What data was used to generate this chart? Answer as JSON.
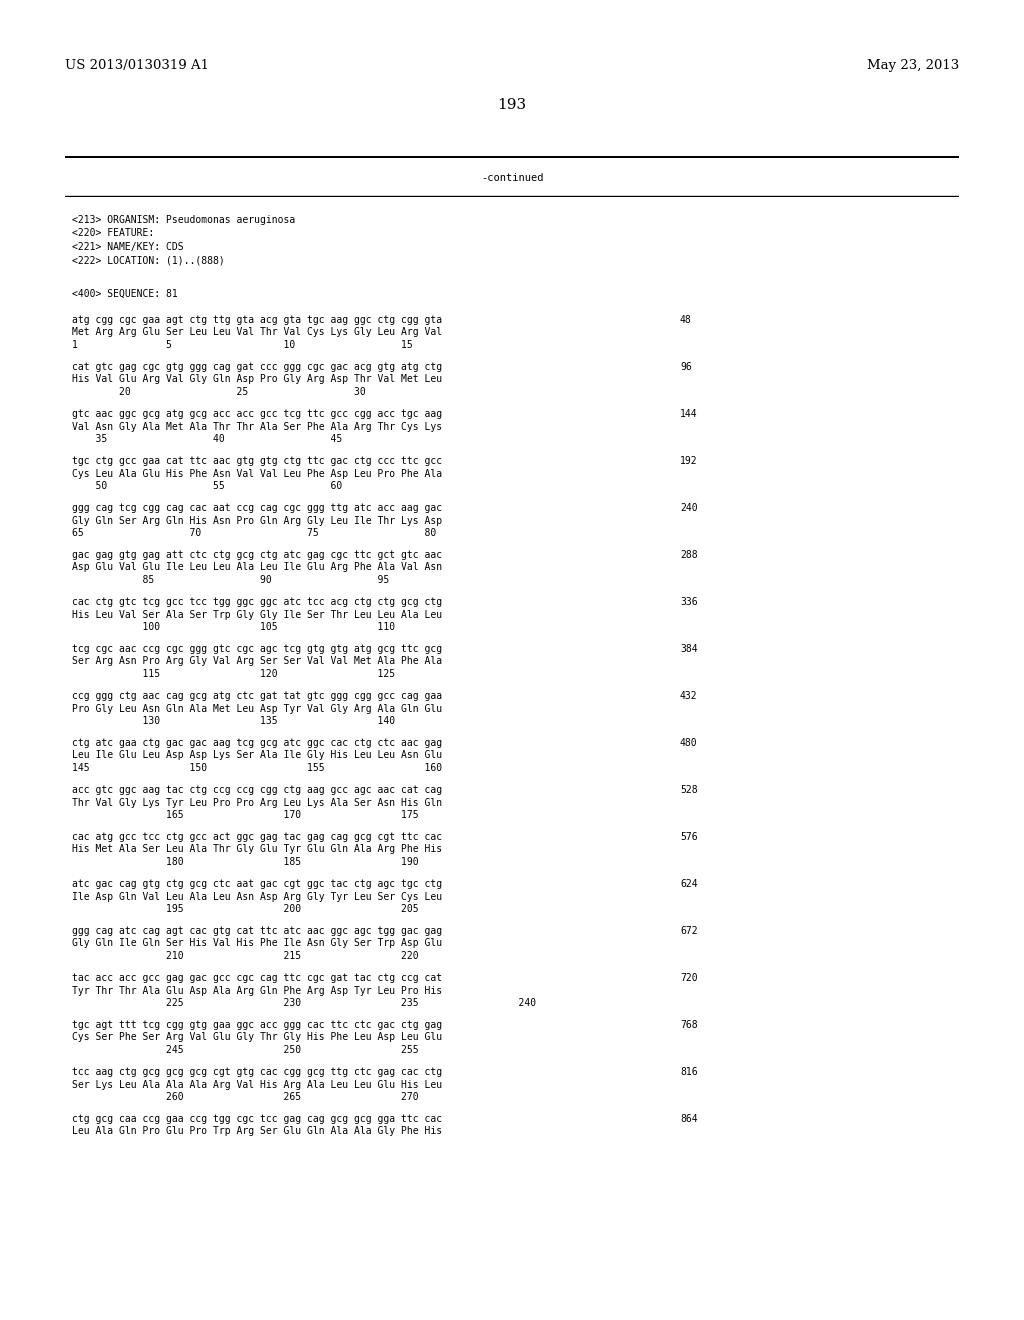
{
  "header_left": "US 2013/0130319 A1",
  "header_right": "May 23, 2013",
  "page_number": "193",
  "continued_label": "-continued",
  "background_color": "#ffffff",
  "text_color": "#000000",
  "metadata_lines": [
    "<213> ORGANISM: Pseudomonas aeruginosa",
    "<220> FEATURE:",
    "<221> NAME/KEY: CDS",
    "<222> LOCATION: (1)..(888)",
    "",
    "<400> SEQUENCE: 81"
  ],
  "sequence_blocks": [
    {
      "dna": "atg cgg cgc gaa agt ctg ttg gta acg gta tgc aag ggc ctg cgg gta",
      "aa": "Met Arg Arg Glu Ser Leu Leu Val Thr Val Cys Lys Gly Leu Arg Val",
      "nums": "1               5                   10                  15",
      "count": "48"
    },
    {
      "dna": "cat gtc gag cgc gtg ggg cag gat ccc ggg cgc gac acg gtg atg ctg",
      "aa": "His Val Glu Arg Val Gly Gln Asp Pro Gly Arg Asp Thr Val Met Leu",
      "nums": "        20                  25                  30",
      "count": "96"
    },
    {
      "dna": "gtc aac ggc gcg atg gcg acc acc gcc tcg ttc gcc cgg acc tgc aag",
      "aa": "Val Asn Gly Ala Met Ala Thr Thr Ala Ser Phe Ala Arg Thr Cys Lys",
      "nums": "    35                  40                  45",
      "count": "144"
    },
    {
      "dna": "tgc ctg gcc gaa cat ttc aac gtg gtg ctg ttc gac ctg ccc ttc gcc",
      "aa": "Cys Leu Ala Glu His Phe Asn Val Val Leu Phe Asp Leu Pro Phe Ala",
      "nums": "    50                  55                  60",
      "count": "192"
    },
    {
      "dna": "ggg cag tcg cgg cag cac aat ccg cag cgc ggg ttg atc acc aag gac",
      "aa": "Gly Gln Ser Arg Gln His Asn Pro Gln Arg Gly Leu Ile Thr Lys Asp",
      "nums": "65                  70                  75                  80",
      "count": "240"
    },
    {
      "dna": "gac gag gtg gag att ctc ctg gcg ctg atc gag cgc ttc gct gtc aac",
      "aa": "Asp Glu Val Glu Ile Leu Leu Ala Leu Ile Glu Arg Phe Ala Val Asn",
      "nums": "            85                  90                  95",
      "count": "288"
    },
    {
      "dna": "cac ctg gtc tcg gcc tcc tgg ggc ggc atc tcc acg ctg ctg gcg ctg",
      "aa": "His Leu Val Ser Ala Ser Trp Gly Gly Ile Ser Thr Leu Leu Ala Leu",
      "nums": "            100                 105                 110",
      "count": "336"
    },
    {
      "dna": "tcg cgc aac ccg cgc ggg gtc cgc agc tcg gtg gtg atg gcg ttc gcg",
      "aa": "Ser Arg Asn Pro Arg Gly Val Arg Ser Ser Val Val Met Ala Phe Ala",
      "nums": "            115                 120                 125",
      "count": "384"
    },
    {
      "dna": "ccg ggg ctg aac cag gcg atg ctc gat tat gtc ggg cgg gcc cag gaa",
      "aa": "Pro Gly Leu Asn Gln Ala Met Leu Asp Tyr Val Gly Arg Ala Gln Glu",
      "nums": "            130                 135                 140",
      "count": "432"
    },
    {
      "dna": "ctg atc gaa ctg gac gac aag tcg gcg atc ggc cac ctg ctc aac gag",
      "aa": "Leu Ile Glu Leu Asp Asp Lys Ser Ala Ile Gly His Leu Leu Asn Glu",
      "nums": "145                 150                 155                 160",
      "count": "480"
    },
    {
      "dna": "acc gtc ggc aag tac ctg ccg ccg cgg ctg aag gcc agc aac cat cag",
      "aa": "Thr Val Gly Lys Tyr Leu Pro Pro Arg Leu Lys Ala Ser Asn His Gln",
      "nums": "                165                 170                 175",
      "count": "528"
    },
    {
      "dna": "cac atg gcc tcc ctg gcc act ggc gag tac gag cag gcg cgt ttc cac",
      "aa": "His Met Ala Ser Leu Ala Thr Gly Glu Tyr Glu Gln Ala Arg Phe His",
      "nums": "                180                 185                 190",
      "count": "576"
    },
    {
      "dna": "atc gac cag gtg ctg gcg ctc aat gac cgt ggc tac ctg agc tgc ctg",
      "aa": "Ile Asp Gln Val Leu Ala Leu Asn Asp Arg Gly Tyr Leu Ser Cys Leu",
      "nums": "                195                 200                 205",
      "count": "624"
    },
    {
      "dna": "ggg cag atc cag agt cac gtg cat ttc atc aac ggc agc tgg gac gag",
      "aa": "Gly Gln Ile Gln Ser His Val His Phe Ile Asn Gly Ser Trp Asp Glu",
      "nums": "                210                 215                 220",
      "count": "672"
    },
    {
      "dna": "tac acc acc gcc gag gac gcc cgc cag ttc cgc gat tac ctg ccg cat",
      "aa": "Tyr Thr Thr Ala Glu Asp Ala Arg Gln Phe Arg Asp Tyr Leu Pro His",
      "nums": "                225                 230                 235                 240",
      "count": "720"
    },
    {
      "dna": "tgc agt ttt tcg cgg gtg gaa ggc acc ggg cac ttc ctc gac ctg gag",
      "aa": "Cys Ser Phe Ser Arg Val Glu Gly Thr Gly His Phe Leu Asp Leu Glu",
      "nums": "                245                 250                 255",
      "count": "768"
    },
    {
      "dna": "tcc aag ctg gcg gcg gcg cgt gtg cac cgg gcg ttg ctc gag cac ctg",
      "aa": "Ser Lys Leu Ala Ala Ala Arg Val His Arg Ala Leu Leu Glu His Leu",
      "nums": "                260                 265                 270",
      "count": "816"
    },
    {
      "dna": "ctg gcg caa ccg gaa ccg tgg cgc tcc gag cag gcg gcg gga ttc cac",
      "aa": "Leu Ala Gln Pro Glu Pro Trp Arg Ser Glu Gln Ala Ala Gly Phe His",
      "nums": "",
      "count": "864"
    }
  ]
}
